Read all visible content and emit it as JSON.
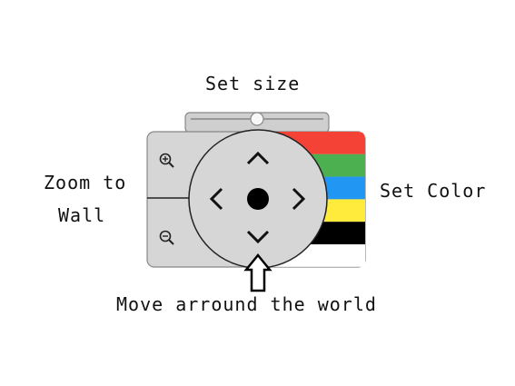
{
  "labels": {
    "set_size": "Set size",
    "zoom_line1": "Zoom to",
    "zoom_line2": "Wall",
    "set_color": "Set Color",
    "move": "Move arround the world"
  },
  "size_slider": {
    "value": 0.5
  },
  "color_swatches": [
    "#f44336",
    "#4caf50",
    "#2196f3",
    "#ffeb3b",
    "#000000",
    "#ffffff"
  ],
  "icons": {
    "zoom_in": "zoom-in-icon",
    "zoom_out": "zoom-out-icon",
    "up": "chevron-up-icon",
    "down": "chevron-down-icon",
    "left": "chevron-left-icon",
    "right": "chevron-right-icon",
    "center": "center-dot-icon",
    "pointer": "up-arrow-outline-icon"
  },
  "colors": {
    "panel_bg": "#d6d6d6",
    "panel_border": "#888888",
    "ink": "#111111"
  }
}
